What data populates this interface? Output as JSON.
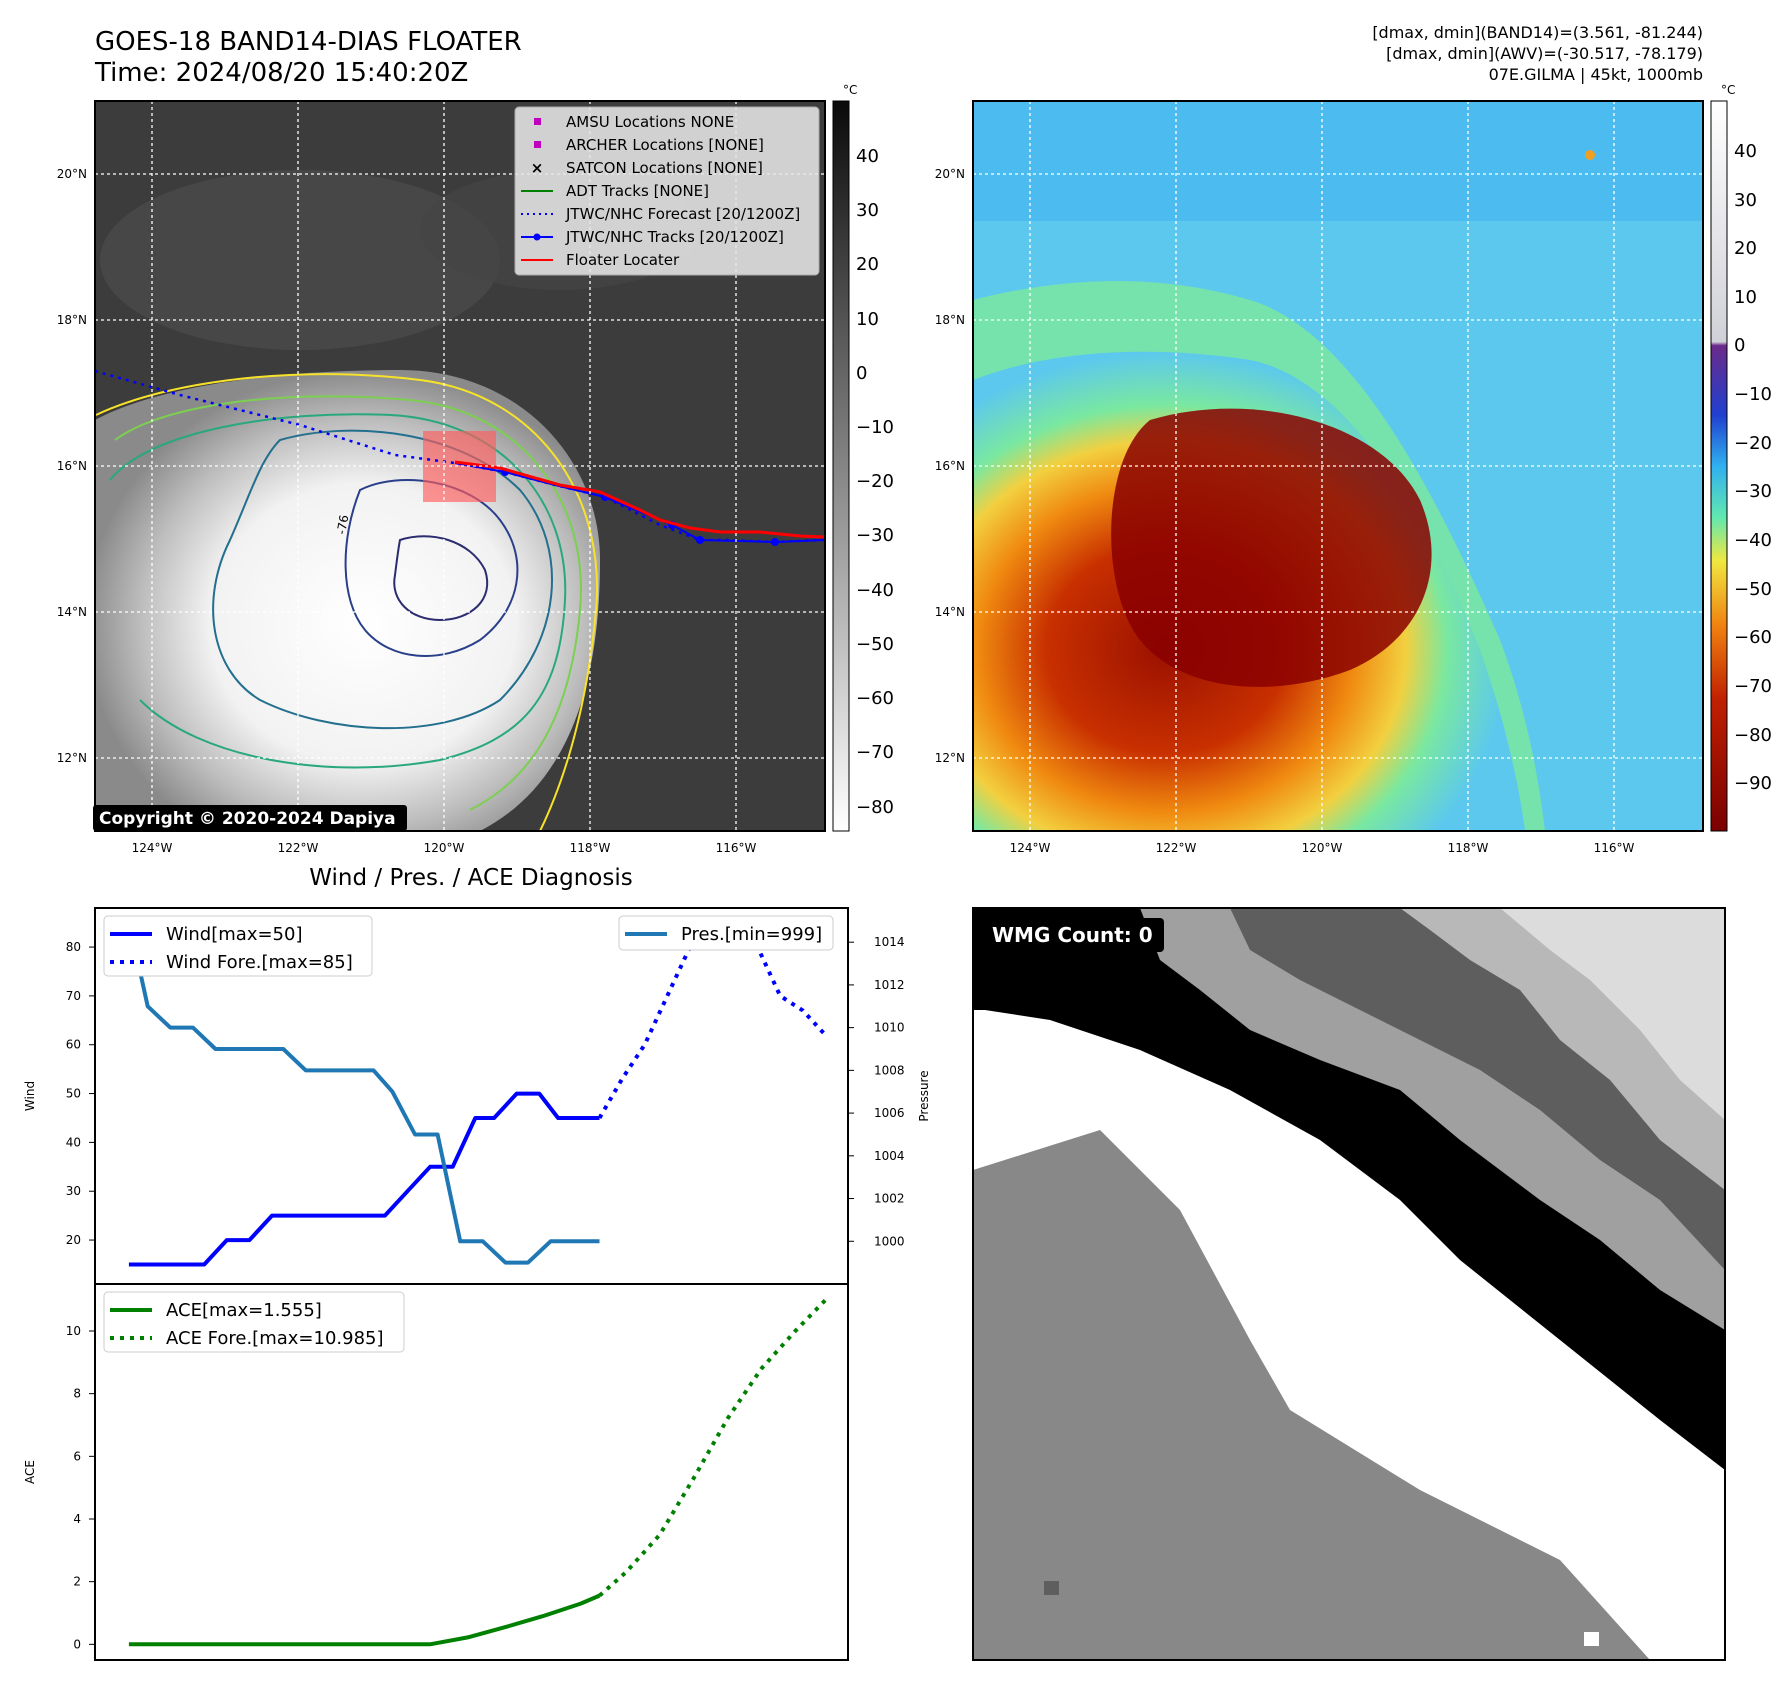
{
  "header": {
    "title_line1": "GOES-18 BAND14-DIAS FLOATER",
    "title_line2": "Time: 2024/08/20 15:40:20Z",
    "info_line1": "[dmax, dmin](BAND14)=(3.561, -81.244)",
    "info_line2": "[dmax, dmin](AWV)=(-30.517, -78.179)",
    "info_line3": "07E.GILMA | 45kt, 1000mb"
  },
  "map": {
    "lat_labels": [
      "20°N",
      "18°N",
      "16°N",
      "14°N",
      "12°N"
    ],
    "lon_labels": [
      "124°W",
      "122°W",
      "120°W",
      "118°W",
      "116°W"
    ],
    "contour_label": "-76",
    "copyright": "Copyright © 2020-2024 Dapiya",
    "legend": [
      {
        "label": "AMSU Locations NONE",
        "marker": "square",
        "color": "#bf00bf"
      },
      {
        "label": "ARCHER Locations [NONE]",
        "marker": "square",
        "color": "#bf00bf"
      },
      {
        "label": "SATCON Locations [NONE]",
        "marker": "x",
        "color": "#17becf"
      },
      {
        "label": "ADT Tracks [NONE]",
        "marker": "line",
        "color": "#008000"
      },
      {
        "label": "JTWC/NHC Forecast [20/1200Z]",
        "marker": "dotted",
        "color": "#0000ff"
      },
      {
        "label": "JTWC/NHC Tracks [20/1200Z]",
        "marker": "line-dot",
        "color": "#0000ff"
      },
      {
        "label": "Floater Locater",
        "marker": "line",
        "color": "#ff0000"
      }
    ]
  },
  "colorbar1": {
    "unit": "°C",
    "ticks": [
      "40",
      "30",
      "20",
      "10",
      "0",
      "−10",
      "−20",
      "−30",
      "−40",
      "−50",
      "−60",
      "−70",
      "−80"
    ]
  },
  "colorbar2": {
    "unit": "°C",
    "ticks": [
      "40",
      "30",
      "20",
      "10",
      "0",
      "−10",
      "−20",
      "−30",
      "−40",
      "−50",
      "−60",
      "−70",
      "−80",
      "−90"
    ]
  },
  "wmg": {
    "label": "WMG Count: 0"
  },
  "colors": {
    "wind": "#0000ff",
    "pressure": "#1f77b4",
    "ace": "#008000",
    "floater": "#ff0000"
  },
  "chart_data": [
    {
      "type": "line",
      "title": "Wind / Pres. / ACE Diagnosis",
      "ylabel": "Wind",
      "y2label": "Pressure",
      "ylim": [
        11,
        88
      ],
      "y2lim": [
        998.0,
        1015.6
      ],
      "yticks": [
        "80",
        "70",
        "60",
        "50",
        "40",
        "30",
        "20"
      ],
      "y2ticks": [
        "1014",
        "1012",
        "1010",
        "1008",
        "1006",
        "1004",
        "1002",
        "1000"
      ],
      "xlim": [
        0,
        20
      ],
      "series": [
        {
          "name": "Wind[max=50]",
          "axis": "left",
          "style": "solid",
          "x": [
            0.9,
            1.6,
            2.4,
            2.9,
            3.5,
            4.1,
            4.7,
            5.3,
            5.9,
            6.5,
            7.1,
            7.7,
            8.3,
            8.9,
            9.5,
            10.1,
            10.6,
            11.2,
            11.8,
            12.3,
            12.9,
            13.4
          ],
          "values": [
            15,
            15,
            15,
            15,
            20,
            20,
            25,
            25,
            25,
            25,
            25,
            25,
            30,
            35,
            35,
            45,
            45,
            50,
            50,
            45,
            45,
            45
          ]
        },
        {
          "name": "Wind Fore.[max=85]",
          "axis": "left",
          "style": "dotted",
          "x": [
            13.4,
            14.0,
            14.6,
            15.2,
            15.8,
            16.4,
            17.0,
            17.6,
            18.2,
            18.8,
            19.4
          ],
          "values": [
            45,
            53,
            60,
            70,
            80,
            85,
            85,
            80,
            70,
            67,
            62
          ]
        },
        {
          "name": "Pres.[min=999]",
          "axis": "right",
          "style": "solid",
          "x": [
            0.9,
            1.4,
            2.0,
            2.6,
            3.2,
            3.8,
            4.4,
            5.0,
            5.6,
            6.2,
            6.8,
            7.4,
            7.9,
            8.5,
            9.1,
            9.7,
            10.3,
            10.9,
            11.5,
            12.1,
            12.7,
            13.4
          ],
          "values": [
            1015,
            1011,
            1010,
            1010,
            1009,
            1009,
            1009,
            1009,
            1008,
            1008,
            1008,
            1008,
            1007,
            1005,
            1005,
            1000,
            1000,
            999,
            999,
            1000,
            1000,
            1000
          ]
        }
      ]
    },
    {
      "type": "line",
      "ylabel": "ACE",
      "ylim": [
        -0.5,
        11.5
      ],
      "yticks": [
        "10",
        "8",
        "6",
        "4",
        "2",
        "0"
      ],
      "xlim": [
        0,
        20
      ],
      "series": [
        {
          "name": "ACE[max=1.555]",
          "style": "solid",
          "x": [
            0.9,
            1.9,
            2.9,
            3.9,
            4.9,
            5.9,
            6.9,
            7.9,
            8.9,
            9.9,
            10.9,
            11.9,
            12.9,
            13.4
          ],
          "values": [
            0,
            0,
            0,
            0,
            0,
            0,
            0,
            0,
            0,
            0.22,
            0.55,
            0.9,
            1.3,
            1.555
          ]
        },
        {
          "name": "ACE Fore.[max=10.985]",
          "style": "dotted",
          "x": [
            13.4,
            14.1,
            15.0,
            15.9,
            16.8,
            17.7,
            18.6,
            19.4
          ],
          "values": [
            1.555,
            2.3,
            3.5,
            5.3,
            7.2,
            8.8,
            10.0,
            10.985
          ]
        }
      ]
    }
  ]
}
